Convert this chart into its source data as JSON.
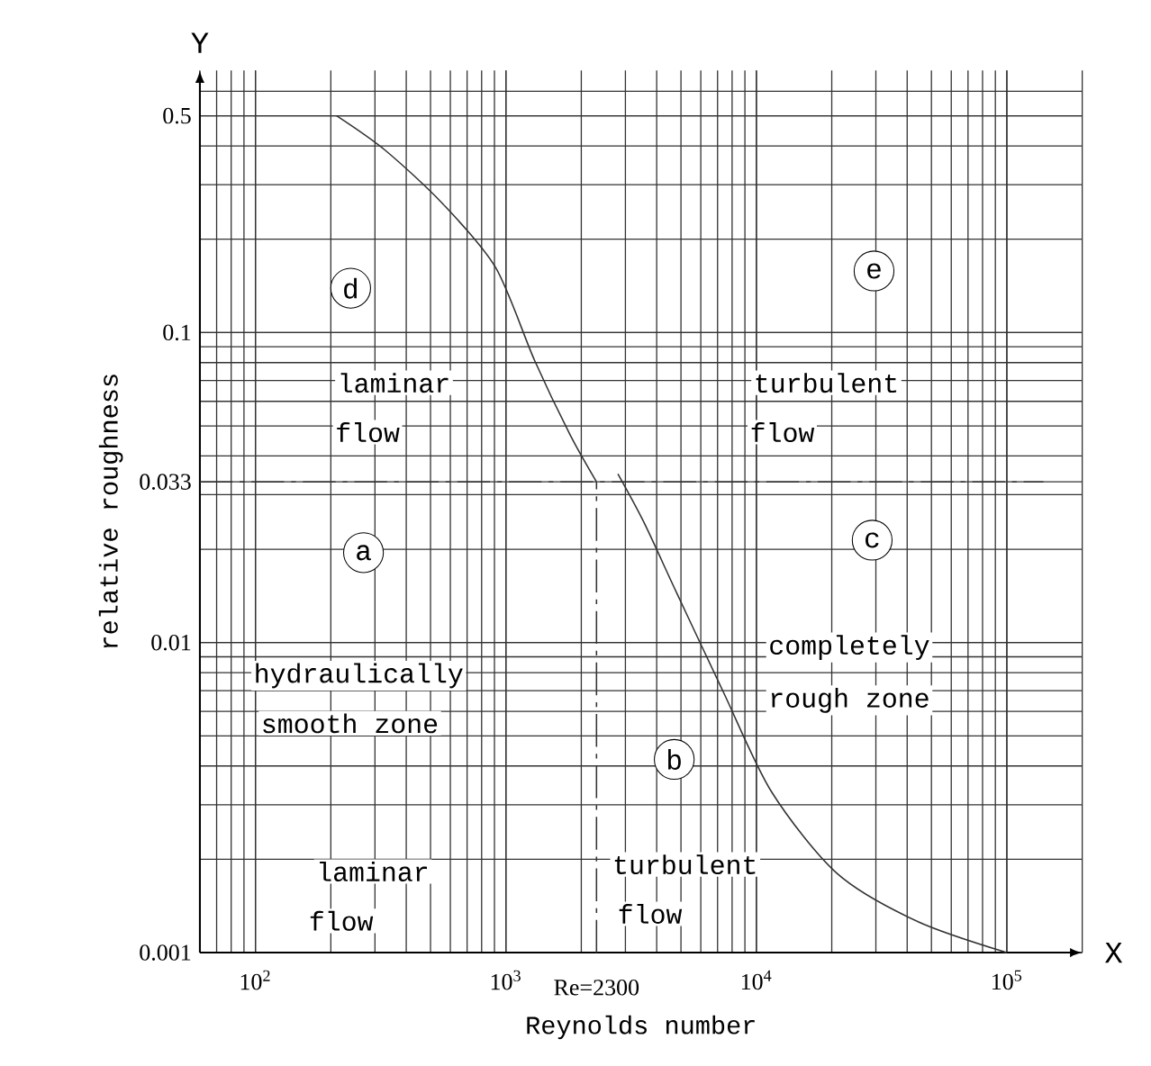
{
  "chart_data": {
    "type": "line",
    "xlabel": "Reynolds number",
    "ylabel": "relative roughness",
    "log": "xy",
    "grid": true,
    "marker": "none",
    "line_style": "solid",
    "xlim": [
      60,
      200000
    ],
    "ylim": [
      0.001,
      0.7
    ],
    "xticks": [
      {
        "value": 100,
        "label": "10$^{2}$"
      },
      {
        "value": 1000,
        "label": "10$^{3}$"
      },
      {
        "value": 10000,
        "label": "10$^{4}$"
      },
      {
        "value": 100000,
        "label": "10$^{5}$"
      }
    ],
    "yticks": [
      0.001,
      0.01,
      0.033,
      0.1,
      0.5
    ],
    "series": [
      {
        "color": "#333333",
        "x": [
          211,
          330,
          560,
          910,
          1300,
          1800,
          2300
        ],
        "values": [
          0.5,
          0.387,
          0.26,
          0.162,
          0.0815,
          0.047,
          0.033
        ]
      },
      {
        "color": "#333333",
        "x": [
          2800,
          3550,
          4800,
          7400,
          11500,
          21000,
          44000,
          100000
        ],
        "values": [
          0.035,
          0.0245,
          0.0145,
          0.0069,
          0.0033,
          0.0018,
          0.00126,
          0.001
        ]
      }
    ],
    "ref_lines": [
      {
        "axis": "y",
        "value": 0.033,
        "color": "#333333",
        "line_style": "dashed"
      },
      {
        "axis": "x",
        "value": 2300,
        "label": "Re=2300",
        "color": "#333333",
        "line_style": "dashed"
      }
    ],
    "annotations": [
      {
        "text": "d",
        "x": 240,
        "y": 0.139
      },
      {
        "text": "e",
        "x": 29500,
        "y": 0.158
      },
      {
        "text": "a",
        "x": 270,
        "y": 0.0195
      },
      {
        "text": "c",
        "x": 29000,
        "y": 0.0214
      },
      {
        "text": "b",
        "x": 4700,
        "y": 0.0042
      },
      "laminar",
      "flow",
      "turbulent",
      "flow",
      "hydraulically",
      "smooth zone",
      "completely",
      "rough zone",
      "laminar",
      "flow",
      "turbulent",
      "flow",
      "X",
      "Y"
    ]
  }
}
